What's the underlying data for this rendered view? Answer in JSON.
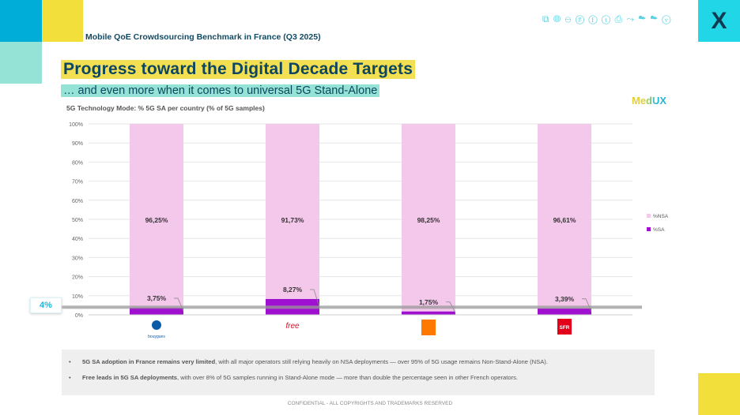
{
  "header": {
    "report_title": "Mobile QoE Crowdsourcing Benchmark in France (Q3 2025)",
    "title": "Progress toward the Digital Decade Targets",
    "subtitle": "… and even more when it comes to universal 5G Stand-Alone",
    "brand": "MedUX",
    "icons": [
      "network-icon",
      "globe-icon",
      "gamepad-icon",
      "google-plus-icon",
      "facebook-icon",
      "twitter-icon",
      "print-icon",
      "share-icon",
      "cloud-download-icon",
      "cloud-upload-icon",
      "shield-icon"
    ]
  },
  "chart_data": {
    "type": "bar",
    "stacked": true,
    "title": "5G Technology Mode: % 5G SA per country (% of 5G samples)",
    "categories": [
      "bouygues",
      "free",
      "orange",
      "SFR"
    ],
    "series": [
      {
        "name": "%SA",
        "values": [
          3.75,
          8.27,
          1.75,
          3.39
        ],
        "labels": [
          "3,75%",
          "8,27%",
          "1,75%",
          "3,39%"
        ],
        "color": "#a010d0"
      },
      {
        "name": "%NSA",
        "values": [
          96.25,
          91.73,
          98.25,
          96.61
        ],
        "labels": [
          "96,25%",
          "91,73%",
          "98,25%",
          "96,61%"
        ],
        "color": "#f3c8ea"
      }
    ],
    "ylim": [
      0,
      100
    ],
    "yticks": [
      "0%",
      "10%",
      "20%",
      "30%",
      "40%",
      "50%",
      "60%",
      "70%",
      "80%",
      "90%",
      "100%"
    ],
    "grid": true,
    "legend": "right",
    "reference_line": {
      "value": 4,
      "label": "4%"
    }
  },
  "notes": [
    {
      "bold": "5G SA adoption in France remains very limited",
      "text": ", with all major operators still relying heavily on NSA deployments — over 95% of 5G usage remains Non-Stand-Alone (NSA)."
    },
    {
      "bold": "Free leads in 5G SA deployments",
      "text": ", with over 8% of 5G samples running in Stand-Alone mode — more than double the percentage seen in other French operators."
    }
  ],
  "footer": "CONFIDENTIAL - ALL COPYRIGHTS AND TRADEMARKS RESERVED"
}
